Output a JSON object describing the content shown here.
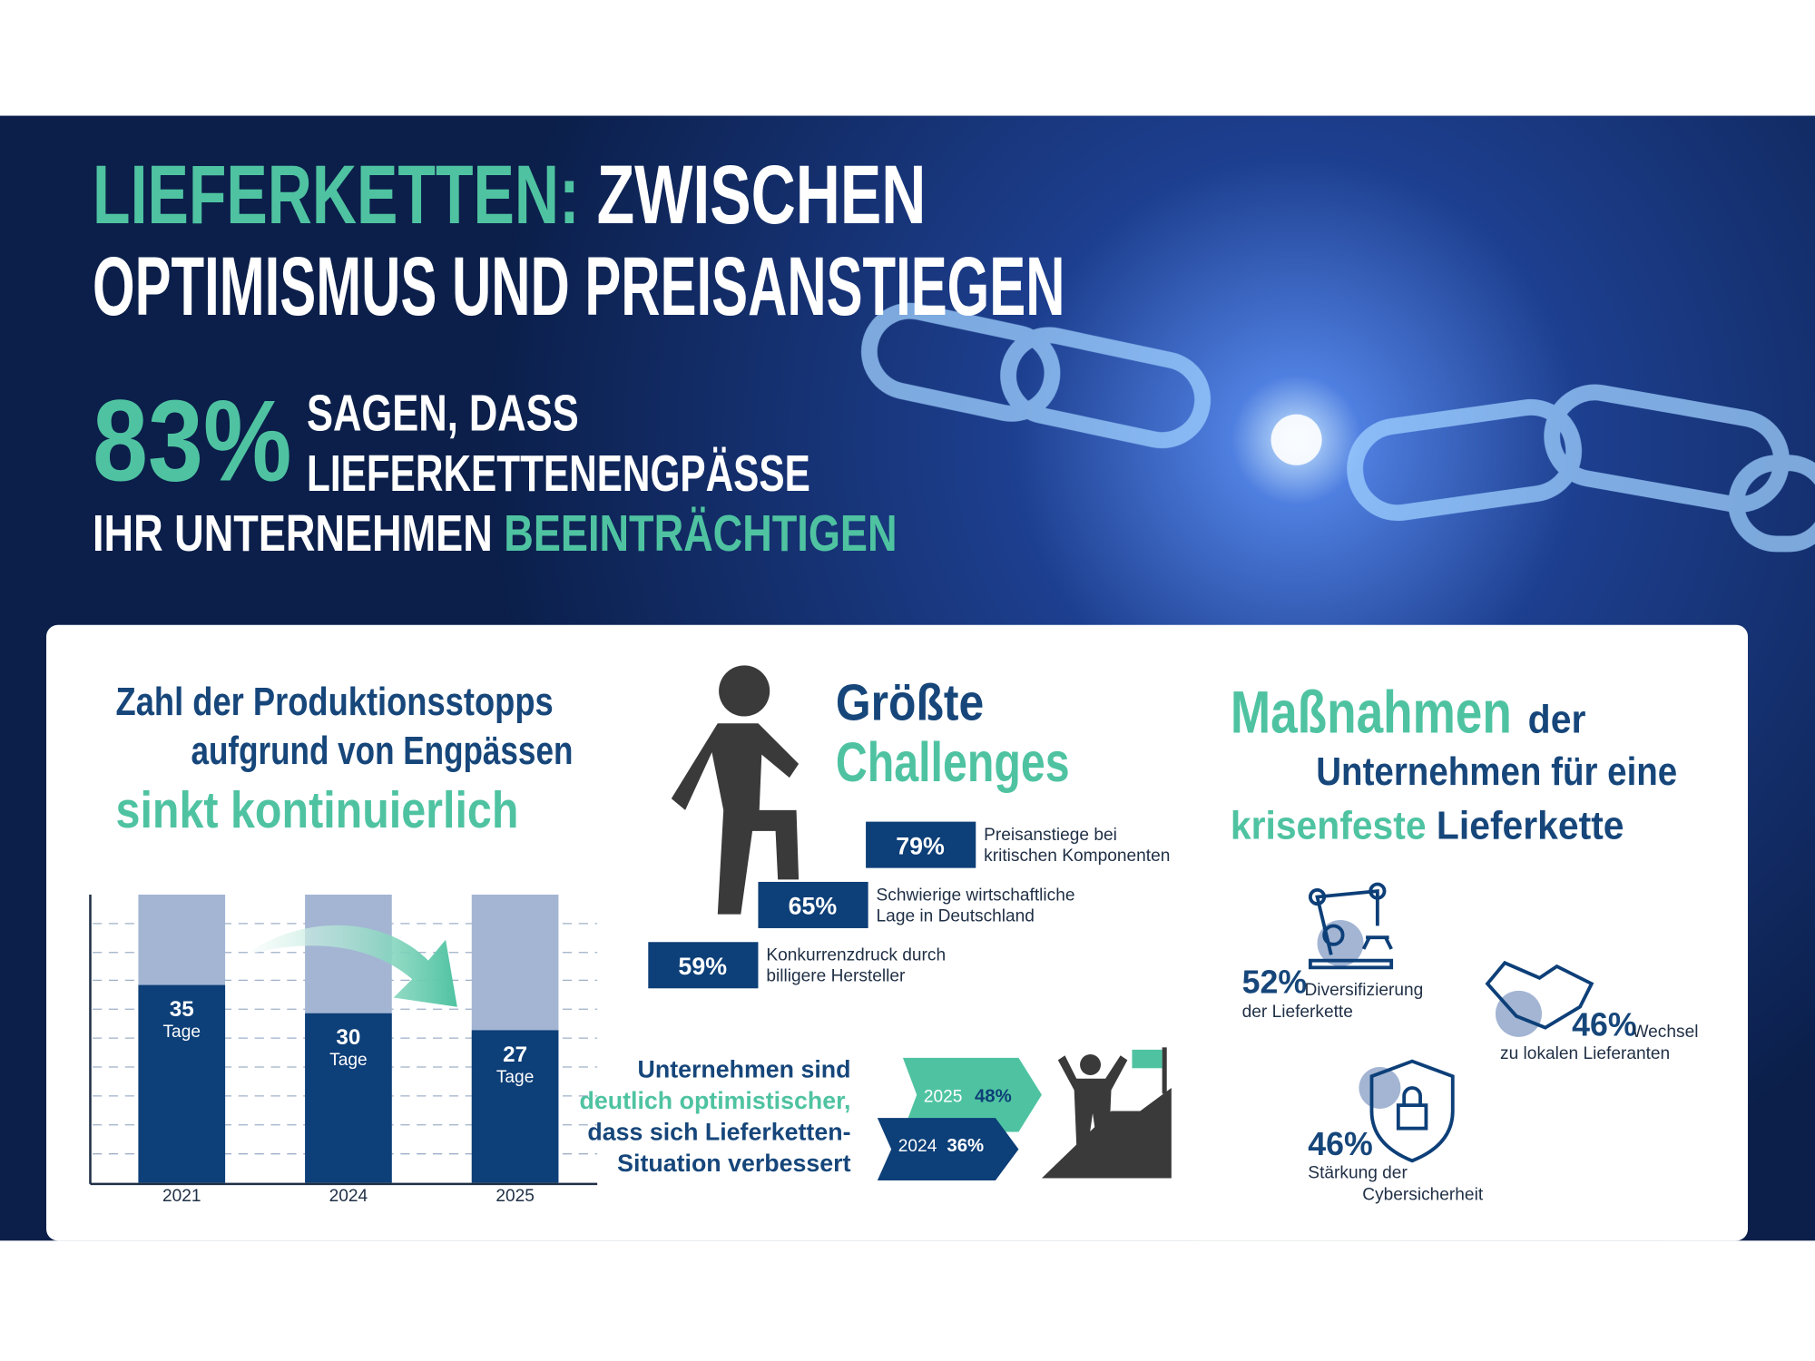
{
  "header": {
    "title_highlight": "LIEFERKETTEN:",
    "title_rest": " ZWISCHEN",
    "title_line2": "OPTIMISMUS UND PREISANSTIEGEN",
    "stat": "83%",
    "stat_line1": "SAGEN, DASS",
    "stat_line2": "LIEFERKETTENENGPÄSSE",
    "stat_line3": "IHR UNTERNEHMEN ",
    "stat_highlight": "BEEINTRÄCHTIGEN"
  },
  "production_stops": {
    "title_line1": "Zahl der Produktionsstopps",
    "title_line2": "aufgrund von Engpässen",
    "title_highlight": "sinkt kontinuierlich"
  },
  "chart_data": {
    "type": "bar",
    "categories": [
      "2021",
      "2024",
      "2025"
    ],
    "values": [
      35,
      30,
      27
    ],
    "unit_label": "Tage",
    "ylim": [
      0,
      51
    ],
    "color": "#0d3f78",
    "background_color": "#a3b5d3"
  },
  "challenges": {
    "title": "Größte",
    "title_highlight": "Challenges",
    "items": [
      {
        "value": "79%",
        "lines": [
          "Preisanstiege bei",
          "kritischen Komponenten"
        ]
      },
      {
        "value": "65%",
        "lines": [
          "Schwierige wirtschaftliche",
          "Lage in Deutschland"
        ]
      },
      {
        "value": "59%",
        "lines": [
          "Konkurrenzdruck durch",
          "billigere Hersteller"
        ]
      }
    ]
  },
  "optimism": {
    "lines": [
      "Unternehmen sind",
      "deutlich optimistischer,",
      "dass sich Lieferketten-",
      "Situation verbessert"
    ],
    "years": [
      {
        "year": "2025",
        "value": "48%"
      },
      {
        "year": "2024",
        "value": "36%"
      }
    ]
  },
  "measures": {
    "title_highlight": "Maßnahmen",
    "title_der": "der",
    "title_line2": "Unternehmen für eine",
    "title_line3_highlight": "krisenfeste",
    "title_line3_rest": " Lieferkette",
    "items": [
      {
        "value": "52%",
        "lines": [
          "Diversifizierung",
          "der Lieferkette"
        ]
      },
      {
        "value": "46%",
        "lines": [
          "Wechsel",
          "zu lokalen Lieferanten"
        ]
      },
      {
        "value": "46%",
        "lines": [
          "Stärkung der",
          "Cybersicherheit"
        ]
      }
    ]
  }
}
